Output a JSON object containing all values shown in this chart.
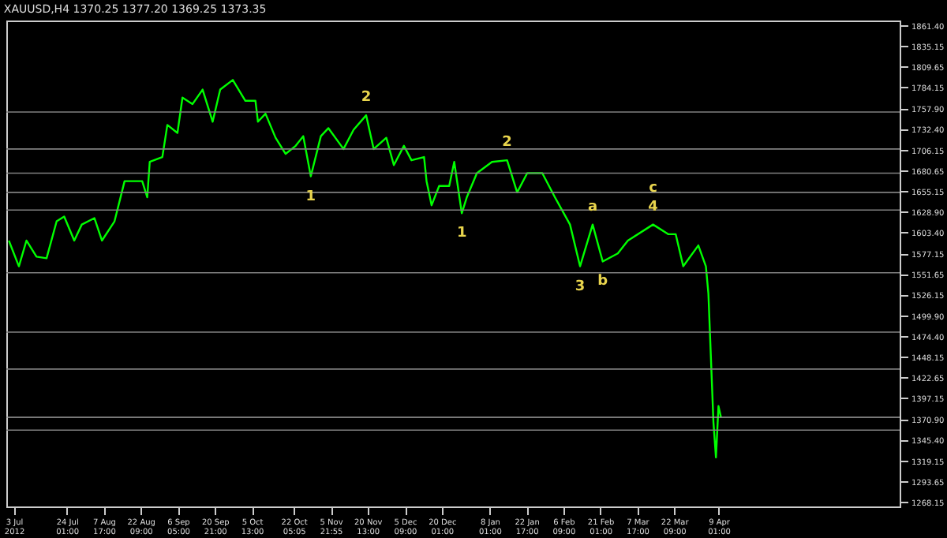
{
  "chart_data": {
    "type": "line",
    "title": "XAUUSD,H4  1370.25 1377.20 1369.25 1373.35",
    "series": [
      {
        "color": "#00ff00",
        "x": [
          "2012-07-01",
          "2012-07-05",
          "2012-07-08",
          "2012-07-12",
          "2012-07-16",
          "2012-07-20",
          "2012-07-23",
          "2012-07-27",
          "2012-07-30",
          "2012-08-04",
          "2012-08-07",
          "2012-08-12",
          "2012-08-16",
          "2012-08-23",
          "2012-08-25",
          "2012-08-26",
          "2012-08-31",
          "2012-09-02",
          "2012-09-06",
          "2012-09-08",
          "2012-09-12",
          "2012-09-16",
          "2012-09-20",
          "2012-09-23",
          "2012-09-28",
          "2012-10-03",
          "2012-10-07",
          "2012-10-08",
          "2012-10-11",
          "2012-10-15",
          "2012-10-19",
          "2012-10-23",
          "2012-10-26",
          "2012-10-29",
          "2012-11-02",
          "2012-11-05",
          "2012-11-11",
          "2012-11-15",
          "2012-11-20",
          "2012-11-23",
          "2012-11-28",
          "2012-12-01",
          "2012-12-05",
          "2012-12-08",
          "2012-12-13",
          "2012-12-14",
          "2012-12-16",
          "2012-12-19",
          "2012-12-23",
          "2012-12-25",
          "2012-12-28",
          "2012-12-30",
          "2013-01-03",
          "2013-01-09",
          "2013-01-15",
          "2013-01-19",
          "2013-01-23",
          "2013-01-29",
          "2013-02-03",
          "2013-02-09",
          "2013-02-13",
          "2013-02-18",
          "2013-02-22",
          "2013-02-28",
          "2013-03-04",
          "2013-03-14",
          "2013-03-20",
          "2013-03-23",
          "2013-03-26",
          "2013-04-01",
          "2013-04-04",
          "2013-04-05",
          "2013-04-06",
          "2013-04-07",
          "2013-04-08",
          "2013-04-09",
          "2013-04-10"
        ],
        "values": [
          1593,
          1561,
          1593,
          1573,
          1571,
          1617,
          1623,
          1593,
          1613,
          1621,
          1593,
          1617,
          1667,
          1667,
          1647,
          1691,
          1697,
          1737,
          1727,
          1771,
          1763,
          1781,
          1741,
          1781,
          1793,
          1767,
          1767,
          1741,
          1751,
          1721,
          1701,
          1711,
          1723,
          1673,
          1723,
          1733,
          1707,
          1731,
          1749,
          1707,
          1721,
          1687,
          1711,
          1693,
          1697,
          1667,
          1637,
          1661,
          1661,
          1691,
          1627,
          1647,
          1677,
          1691,
          1693,
          1653,
          1677,
          1677,
          1647,
          1613,
          1561,
          1613,
          1567,
          1577,
          1593,
          1613,
          1601,
          1601,
          1561,
          1587,
          1561,
          1527,
          1447,
          1367,
          1323,
          1387,
          1373
        ]
      }
    ],
    "xlim": [
      "2012-06-30",
      "2013-06-20"
    ],
    "xticks": [
      {
        "value": "2012-07-03",
        "label": "3 Jul 2012"
      },
      {
        "value": "2012-07-24T01:00",
        "label": "24 Jul 01:00"
      },
      {
        "value": "2012-08-07T17:00",
        "label": "7 Aug 17:00"
      },
      {
        "value": "2012-08-22T09:00",
        "label": "22 Aug 09:00"
      },
      {
        "value": "2012-09-06T05:00",
        "label": "6 Sep 05:00"
      },
      {
        "value": "2012-09-20T21:00",
        "label": "20 Sep 21:00"
      },
      {
        "value": "2012-10-05T13:00",
        "label": "5 Oct 13:00"
      },
      {
        "value": "2012-10-22T05:05",
        "label": "22 Oct 05:05"
      },
      {
        "value": "2012-11-05T21:55",
        "label": "5 Nov 21:55"
      },
      {
        "value": "2012-11-20T13:00",
        "label": "20 Nov 13:00"
      },
      {
        "value": "2012-12-05T09:00",
        "label": "5 Dec 09:00"
      },
      {
        "value": "2012-12-20T01:00",
        "label": "20 Dec 01:00"
      },
      {
        "value": "2013-01-08T01:00",
        "label": "8 Jan 01:00"
      },
      {
        "value": "2013-01-22T17:00",
        "label": "22 Jan 17:00"
      },
      {
        "value": "2013-02-06T09:00",
        "label": "6 Feb 09:00"
      },
      {
        "value": "2013-02-21T01:00",
        "label": "21 Feb 01:00"
      },
      {
        "value": "2013-03-07T17:00",
        "label": "7 Mar 17:00"
      },
      {
        "value": "2013-03-22T09:00",
        "label": "22 Mar 09:00"
      },
      {
        "value": "2013-04-09T01:00",
        "label": "9 Apr 01:00"
      }
    ],
    "ylim": [
      1262,
      1867
    ],
    "yticks": [
      {
        "value": 1861.4,
        "label": "1861.40"
      },
      {
        "value": 1835.15,
        "label": "1835.15"
      },
      {
        "value": 1809.65,
        "label": "1809.65"
      },
      {
        "value": 1784.15,
        "label": "1784.15"
      },
      {
        "value": 1757.9,
        "label": "1757.90"
      },
      {
        "value": 1732.4,
        "label": "1732.40"
      },
      {
        "value": 1706.15,
        "label": "1706.15"
      },
      {
        "value": 1680.65,
        "label": "1680.65"
      },
      {
        "value": 1655.15,
        "label": "1655.15"
      },
      {
        "value": 1628.9,
        "label": "1628.90"
      },
      {
        "value": 1603.4,
        "label": "1603.40"
      },
      {
        "value": 1577.15,
        "label": "1577.15"
      },
      {
        "value": 1551.65,
        "label": "1551.65"
      },
      {
        "value": 1526.15,
        "label": "1526.15"
      },
      {
        "value": 1499.9,
        "label": "1499.90"
      },
      {
        "value": 1474.4,
        "label": "1474.40"
      },
      {
        "value": 1448.15,
        "label": "1448.15"
      },
      {
        "value": 1422.65,
        "label": "1422.65"
      },
      {
        "value": 1397.15,
        "label": "1397.15"
      },
      {
        "value": 1370.9,
        "label": "1370.90"
      },
      {
        "value": 1345.4,
        "label": "1345.40"
      },
      {
        "value": 1319.15,
        "label": "1319.15"
      },
      {
        "value": 1293.65,
        "label": "1293.65"
      },
      {
        "value": 1268.15,
        "label": "1268.15"
      }
    ],
    "ref_lines": [
      {
        "axis": "y",
        "value": 1753,
        "color": "#808080"
      },
      {
        "axis": "y",
        "value": 1707,
        "color": "#808080"
      },
      {
        "axis": "y",
        "value": 1677,
        "color": "#808080"
      },
      {
        "axis": "y",
        "value": 1653,
        "color": "#808080"
      },
      {
        "axis": "y",
        "value": 1631,
        "color": "#808080"
      },
      {
        "axis": "y",
        "value": 1553,
        "color": "#808080"
      },
      {
        "axis": "y",
        "value": 1479,
        "color": "#808080"
      },
      {
        "axis": "y",
        "value": 1433,
        "color": "#808080"
      },
      {
        "axis": "y",
        "value": 1373,
        "color": "#a0a0a0"
      },
      {
        "axis": "y",
        "value": 1357,
        "color": "#808080"
      }
    ],
    "annotations": [
      {
        "text": "1",
        "x": "2012-10-29",
        "y": 1673
      },
      {
        "text": "2",
        "x": "2012-11-20",
        "y": 1749
      },
      {
        "text": "1",
        "x": "2012-12-28",
        "y": 1627
      },
      {
        "text": "2",
        "x": "2013-01-15",
        "y": 1693
      },
      {
        "text": "3",
        "x": "2013-02-13",
        "y": 1561
      },
      {
        "text": "4",
        "x": "2013-03-14",
        "y": 1613
      },
      {
        "text": "a",
        "x": "2013-02-18",
        "y": 1613
      },
      {
        "text": "b",
        "x": "2013-02-22",
        "y": 1567
      },
      {
        "text": "c",
        "x": "2013-03-14",
        "y": 1613
      }
    ],
    "grid": false,
    "marker": "none",
    "line_style": "solid"
  }
}
